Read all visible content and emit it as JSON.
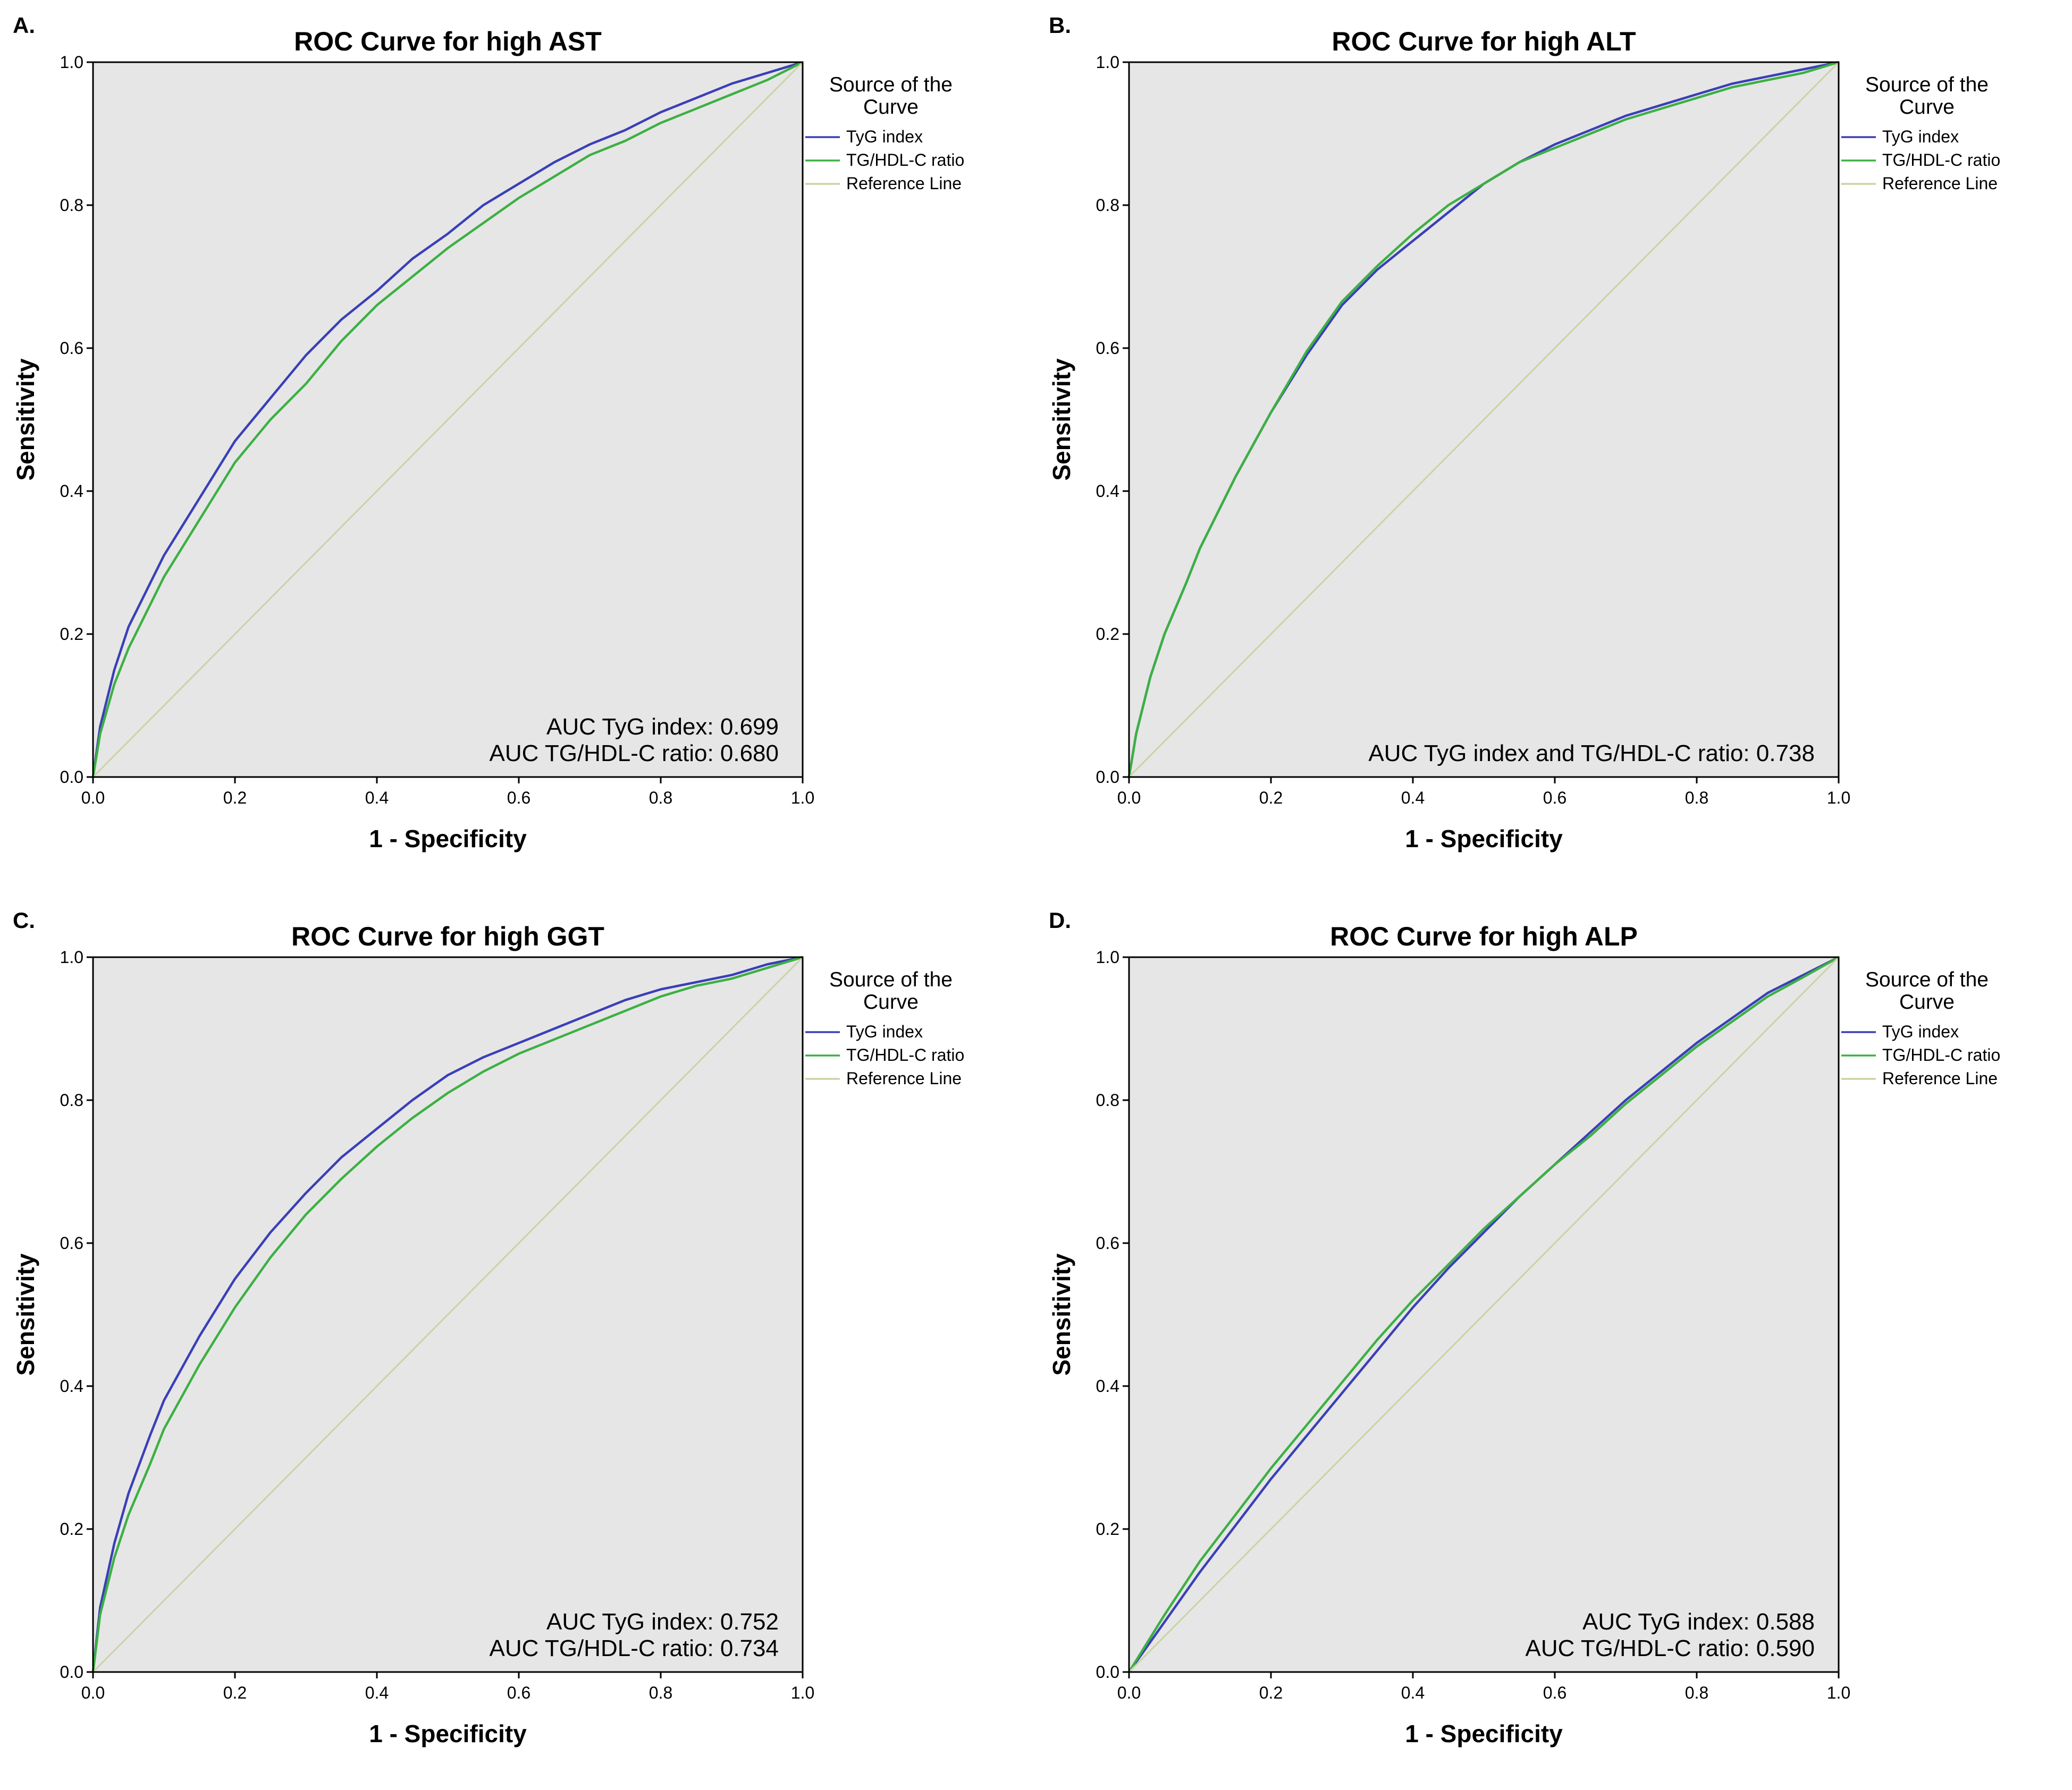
{
  "chart_data": [
    {
      "type": "line",
      "panel_label": "A.",
      "title": "ROC Curve for high AST",
      "xlabel": "1 - Specificity",
      "ylabel": "Sensitivity",
      "xlim": [
        0,
        1
      ],
      "ylim": [
        0,
        1
      ],
      "ticks": [
        "0.0",
        "0.2",
        "0.4",
        "0.6",
        "0.8",
        "1.0"
      ],
      "legend_title": [
        "Source of the",
        "Curve"
      ],
      "legend": [
        "TyG index",
        "TG/HDL-C ratio",
        "Reference Line"
      ],
      "auc_text": [
        "AUC TyG index: 0.699",
        "AUC TG/HDL-C ratio: 0.680"
      ],
      "series": [
        {
          "name": "TyG index",
          "color": "#3a3fb8",
          "x": [
            0,
            0.01,
            0.03,
            0.05,
            0.08,
            0.1,
            0.15,
            0.2,
            0.25,
            0.3,
            0.35,
            0.4,
            0.45,
            0.5,
            0.55,
            0.6,
            0.65,
            0.7,
            0.75,
            0.8,
            0.85,
            0.9,
            0.95,
            1
          ],
          "y": [
            0,
            0.07,
            0.15,
            0.21,
            0.27,
            0.31,
            0.39,
            0.47,
            0.53,
            0.59,
            0.64,
            0.68,
            0.725,
            0.76,
            0.8,
            0.83,
            0.86,
            0.885,
            0.905,
            0.93,
            0.95,
            0.97,
            0.985,
            1
          ]
        },
        {
          "name": "TG/HDL-C ratio",
          "color": "#3cb043",
          "x": [
            0,
            0.01,
            0.03,
            0.05,
            0.08,
            0.1,
            0.15,
            0.2,
            0.25,
            0.3,
            0.35,
            0.4,
            0.45,
            0.5,
            0.55,
            0.6,
            0.65,
            0.7,
            0.75,
            0.8,
            0.85,
            0.9,
            0.95,
            1
          ],
          "y": [
            0,
            0.06,
            0.13,
            0.18,
            0.24,
            0.28,
            0.36,
            0.44,
            0.5,
            0.55,
            0.61,
            0.66,
            0.7,
            0.74,
            0.775,
            0.81,
            0.84,
            0.87,
            0.89,
            0.915,
            0.935,
            0.955,
            0.975,
            1
          ]
        },
        {
          "name": "Reference Line",
          "color": "#c9d4a4",
          "x": [
            0,
            1
          ],
          "y": [
            0,
            1
          ]
        }
      ]
    },
    {
      "type": "line",
      "panel_label": "B.",
      "title": "ROC Curve for high ALT",
      "xlabel": "1 - Specificity",
      "ylabel": "Sensitivity",
      "xlim": [
        0,
        1
      ],
      "ylim": [
        0,
        1
      ],
      "ticks": [
        "0.0",
        "0.2",
        "0.4",
        "0.6",
        "0.8",
        "1.0"
      ],
      "legend_title": [
        "Source of the",
        "Curve"
      ],
      "legend": [
        "TyG index",
        "TG/HDL-C ratio",
        "Reference Line"
      ],
      "auc_text": [
        "AUC TyG index and TG/HDL-C ratio: 0.738"
      ],
      "series": [
        {
          "name": "TyG index",
          "color": "#3a3fb8",
          "x": [
            0,
            0.01,
            0.03,
            0.05,
            0.08,
            0.1,
            0.15,
            0.2,
            0.25,
            0.3,
            0.35,
            0.4,
            0.45,
            0.5,
            0.55,
            0.6,
            0.65,
            0.7,
            0.75,
            0.8,
            0.85,
            0.9,
            0.95,
            1
          ],
          "y": [
            0,
            0.06,
            0.14,
            0.2,
            0.27,
            0.32,
            0.42,
            0.51,
            0.59,
            0.66,
            0.71,
            0.75,
            0.79,
            0.83,
            0.86,
            0.885,
            0.905,
            0.925,
            0.94,
            0.955,
            0.97,
            0.98,
            0.99,
            1
          ]
        },
        {
          "name": "TG/HDL-C ratio",
          "color": "#3cb043",
          "x": [
            0,
            0.01,
            0.03,
            0.05,
            0.08,
            0.1,
            0.15,
            0.2,
            0.25,
            0.3,
            0.35,
            0.4,
            0.45,
            0.5,
            0.55,
            0.6,
            0.65,
            0.7,
            0.75,
            0.8,
            0.85,
            0.9,
            0.95,
            1
          ],
          "y": [
            0,
            0.06,
            0.14,
            0.2,
            0.27,
            0.32,
            0.42,
            0.51,
            0.595,
            0.665,
            0.715,
            0.76,
            0.8,
            0.83,
            0.86,
            0.88,
            0.9,
            0.92,
            0.935,
            0.95,
            0.965,
            0.975,
            0.985,
            1
          ]
        },
        {
          "name": "Reference Line",
          "color": "#c9d4a4",
          "x": [
            0,
            1
          ],
          "y": [
            0,
            1
          ]
        }
      ]
    },
    {
      "type": "line",
      "panel_label": "C.",
      "title": "ROC Curve for high GGT",
      "xlabel": "1 - Specificity",
      "ylabel": "Sensitivity",
      "xlim": [
        0,
        1
      ],
      "ylim": [
        0,
        1
      ],
      "ticks": [
        "0.0",
        "0.2",
        "0.4",
        "0.6",
        "0.8",
        "1.0"
      ],
      "legend_title": [
        "Source of the",
        "Curve"
      ],
      "legend": [
        "TyG index",
        "TG/HDL-C ratio",
        "Reference Line"
      ],
      "auc_text": [
        "AUC TyG index: 0.752",
        "AUC TG/HDL-C ratio: 0.734"
      ],
      "series": [
        {
          "name": "TyG index",
          "color": "#3a3fb8",
          "x": [
            0,
            0.01,
            0.03,
            0.05,
            0.08,
            0.1,
            0.15,
            0.2,
            0.25,
            0.3,
            0.35,
            0.4,
            0.45,
            0.5,
            0.55,
            0.6,
            0.65,
            0.7,
            0.75,
            0.8,
            0.85,
            0.9,
            0.95,
            1
          ],
          "y": [
            0,
            0.09,
            0.18,
            0.25,
            0.33,
            0.38,
            0.47,
            0.55,
            0.615,
            0.67,
            0.72,
            0.76,
            0.8,
            0.835,
            0.86,
            0.88,
            0.9,
            0.92,
            0.94,
            0.955,
            0.965,
            0.975,
            0.99,
            1
          ]
        },
        {
          "name": "TG/HDL-C ratio",
          "color": "#3cb043",
          "x": [
            0,
            0.01,
            0.03,
            0.05,
            0.08,
            0.1,
            0.15,
            0.2,
            0.25,
            0.3,
            0.35,
            0.4,
            0.45,
            0.5,
            0.55,
            0.6,
            0.65,
            0.7,
            0.75,
            0.8,
            0.85,
            0.9,
            0.95,
            1
          ],
          "y": [
            0,
            0.08,
            0.16,
            0.22,
            0.29,
            0.34,
            0.43,
            0.51,
            0.58,
            0.64,
            0.69,
            0.735,
            0.775,
            0.81,
            0.84,
            0.865,
            0.885,
            0.905,
            0.925,
            0.945,
            0.96,
            0.97,
            0.985,
            1
          ]
        },
        {
          "name": "Reference Line",
          "color": "#c9d4a4",
          "x": [
            0,
            1
          ],
          "y": [
            0,
            1
          ]
        }
      ]
    },
    {
      "type": "line",
      "panel_label": "D.",
      "title": "ROC Curve for high ALP",
      "xlabel": "1 - Specificity",
      "ylabel": "Sensitivity",
      "xlim": [
        0,
        1
      ],
      "ylim": [
        0,
        1
      ],
      "ticks": [
        "0.0",
        "0.2",
        "0.4",
        "0.6",
        "0.8",
        "1.0"
      ],
      "legend_title": [
        "Source of the",
        "Curve"
      ],
      "legend": [
        "TyG index",
        "TG/HDL-C ratio",
        "Reference Line"
      ],
      "auc_text": [
        "AUC TyG index: 0.588",
        "AUC TG/HDL-C ratio: 0.590"
      ],
      "series": [
        {
          "name": "TyG index",
          "color": "#3a3fb8",
          "x": [
            0,
            0.05,
            0.1,
            0.15,
            0.2,
            0.25,
            0.3,
            0.35,
            0.4,
            0.45,
            0.5,
            0.55,
            0.6,
            0.65,
            0.7,
            0.75,
            0.8,
            0.85,
            0.9,
            0.95,
            1
          ],
          "y": [
            0,
            0.07,
            0.14,
            0.205,
            0.27,
            0.33,
            0.39,
            0.45,
            0.51,
            0.565,
            0.615,
            0.665,
            0.71,
            0.755,
            0.8,
            0.84,
            0.88,
            0.915,
            0.95,
            0.975,
            1
          ]
        },
        {
          "name": "TG/HDL-C ratio",
          "color": "#3cb043",
          "x": [
            0,
            0.05,
            0.1,
            0.15,
            0.2,
            0.25,
            0.3,
            0.35,
            0.4,
            0.45,
            0.5,
            0.55,
            0.6,
            0.65,
            0.7,
            0.75,
            0.8,
            0.85,
            0.9,
            0.95,
            1
          ],
          "y": [
            0,
            0.08,
            0.155,
            0.22,
            0.285,
            0.345,
            0.405,
            0.465,
            0.52,
            0.57,
            0.62,
            0.665,
            0.71,
            0.75,
            0.795,
            0.835,
            0.875,
            0.91,
            0.945,
            0.972,
            1
          ]
        },
        {
          "name": "Reference Line",
          "color": "#c9d4a4",
          "x": [
            0,
            1
          ],
          "y": [
            0,
            1
          ]
        }
      ]
    }
  ]
}
